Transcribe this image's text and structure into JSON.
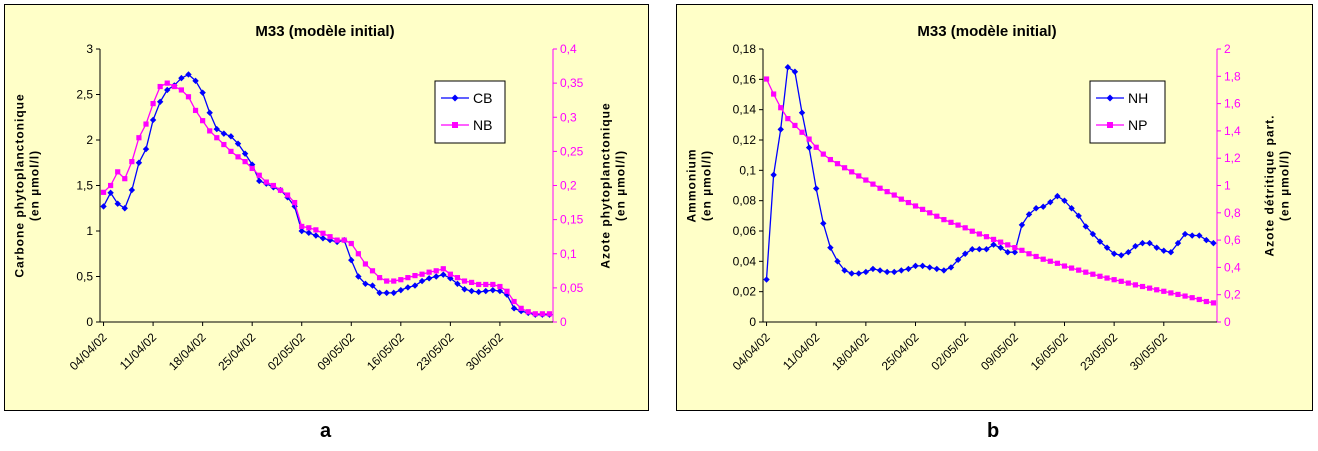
{
  "figure_labels": [
    "a",
    "b"
  ],
  "chart_data": [
    {
      "type": "line",
      "title": "M33 (modèle initial)",
      "ylabel": "Carbone phytoplanctonique (en µmol/l)",
      "y2label": "Azote phytoplanctonique (en µmol/l)",
      "ylim": [
        0,
        3
      ],
      "yticks": [
        "0",
        "0,5",
        "1",
        "1,5",
        "2",
        "2,5",
        "3"
      ],
      "y2lim": [
        0,
        0.4
      ],
      "y2ticks": [
        "0",
        "0,05",
        "0,1",
        "0,15",
        "0,2",
        "0,25",
        "0,3",
        "0,35",
        "0,4"
      ],
      "xticks": [
        "04/04/02",
        "11/04/02",
        "18/04/02",
        "25/04/02",
        "02/05/02",
        "09/05/02",
        "16/05/02",
        "23/05/02",
        "30/05/02"
      ],
      "legend_position": "top-right",
      "series": [
        {
          "name": "CB",
          "axis": "left",
          "color": "#0000ff",
          "marker": "diamond",
          "values": [
            1.27,
            1.42,
            1.3,
            1.25,
            1.45,
            1.75,
            1.9,
            2.22,
            2.42,
            2.55,
            2.6,
            2.68,
            2.72,
            2.65,
            2.52,
            2.3,
            2.12,
            2.07,
            2.04,
            1.96,
            1.85,
            1.73,
            1.55,
            1.52,
            1.48,
            1.45,
            1.37,
            1.27,
            1.0,
            0.98,
            0.95,
            0.92,
            0.9,
            0.88,
            0.9,
            0.68,
            0.5,
            0.42,
            0.4,
            0.32,
            0.32,
            0.32,
            0.35,
            0.38,
            0.4,
            0.45,
            0.48,
            0.5,
            0.52,
            0.48,
            0.42,
            0.36,
            0.34,
            0.33,
            0.34,
            0.35,
            0.34,
            0.3,
            0.15,
            0.12,
            0.1,
            0.08,
            0.08,
            0.08
          ]
        },
        {
          "name": "NB",
          "axis": "right",
          "color": "#ff00ff",
          "marker": "square",
          "values": [
            0.19,
            0.2,
            0.22,
            0.21,
            0.235,
            0.27,
            0.29,
            0.32,
            0.345,
            0.35,
            0.345,
            0.34,
            0.33,
            0.31,
            0.295,
            0.28,
            0.27,
            0.26,
            0.25,
            0.242,
            0.235,
            0.225,
            0.215,
            0.205,
            0.2,
            0.193,
            0.186,
            0.175,
            0.14,
            0.138,
            0.135,
            0.13,
            0.125,
            0.12,
            0.12,
            0.115,
            0.1,
            0.085,
            0.075,
            0.065,
            0.06,
            0.06,
            0.062,
            0.065,
            0.068,
            0.07,
            0.073,
            0.075,
            0.078,
            0.07,
            0.065,
            0.06,
            0.058,
            0.055,
            0.055,
            0.055,
            0.052,
            0.045,
            0.03,
            0.02,
            0.015,
            0.012,
            0.012,
            0.012
          ]
        }
      ]
    },
    {
      "type": "line",
      "title": "M33 (modèle initial)",
      "ylabel": "Ammonium (en µmol/l)",
      "y2label": "Azote détritique part. (en µmol/l)",
      "ylim": [
        0,
        0.18
      ],
      "yticks": [
        "0",
        "0,02",
        "0,04",
        "0,06",
        "0,08",
        "0,1",
        "0,12",
        "0,14",
        "0,16",
        "0,18"
      ],
      "y2lim": [
        0,
        2
      ],
      "y2ticks": [
        "0",
        "0,2",
        "0,4",
        "0,6",
        "0,8",
        "1",
        "1,2",
        "1,4",
        "1,6",
        "1,8",
        "2"
      ],
      "xticks": [
        "04/04/02",
        "11/04/02",
        "18/04/02",
        "25/04/02",
        "02/05/02",
        "09/05/02",
        "16/05/02",
        "23/05/02",
        "30/05/02"
      ],
      "legend_position": "top-right",
      "series": [
        {
          "name": "NH",
          "axis": "left",
          "color": "#0000ff",
          "marker": "diamond",
          "values": [
            0.028,
            0.097,
            0.127,
            0.168,
            0.165,
            0.138,
            0.115,
            0.088,
            0.065,
            0.049,
            0.04,
            0.034,
            0.032,
            0.032,
            0.033,
            0.035,
            0.034,
            0.033,
            0.033,
            0.034,
            0.035,
            0.037,
            0.037,
            0.036,
            0.035,
            0.034,
            0.036,
            0.041,
            0.045,
            0.048,
            0.048,
            0.048,
            0.051,
            0.049,
            0.046,
            0.046,
            0.064,
            0.071,
            0.075,
            0.076,
            0.079,
            0.083,
            0.08,
            0.075,
            0.07,
            0.063,
            0.058,
            0.053,
            0.049,
            0.045,
            0.044,
            0.046,
            0.05,
            0.052,
            0.052,
            0.049,
            0.047,
            0.046,
            0.052,
            0.058,
            0.057,
            0.057,
            0.054,
            0.052
          ]
        },
        {
          "name": "NP",
          "axis": "right",
          "color": "#ff00ff",
          "marker": "square",
          "values": [
            1.78,
            1.67,
            1.57,
            1.49,
            1.44,
            1.39,
            1.34,
            1.28,
            1.23,
            1.19,
            1.16,
            1.13,
            1.1,
            1.07,
            1.04,
            1.01,
            0.98,
            0.955,
            0.93,
            0.9,
            0.875,
            0.85,
            0.825,
            0.8,
            0.775,
            0.75,
            0.73,
            0.71,
            0.69,
            0.665,
            0.645,
            0.625,
            0.605,
            0.585,
            0.565,
            0.545,
            0.525,
            0.5,
            0.48,
            0.46,
            0.445,
            0.43,
            0.41,
            0.395,
            0.38,
            0.365,
            0.35,
            0.335,
            0.322,
            0.31,
            0.298,
            0.285,
            0.272,
            0.26,
            0.248,
            0.236,
            0.225,
            0.213,
            0.202,
            0.19,
            0.178,
            0.165,
            0.15,
            0.14
          ]
        }
      ]
    }
  ]
}
